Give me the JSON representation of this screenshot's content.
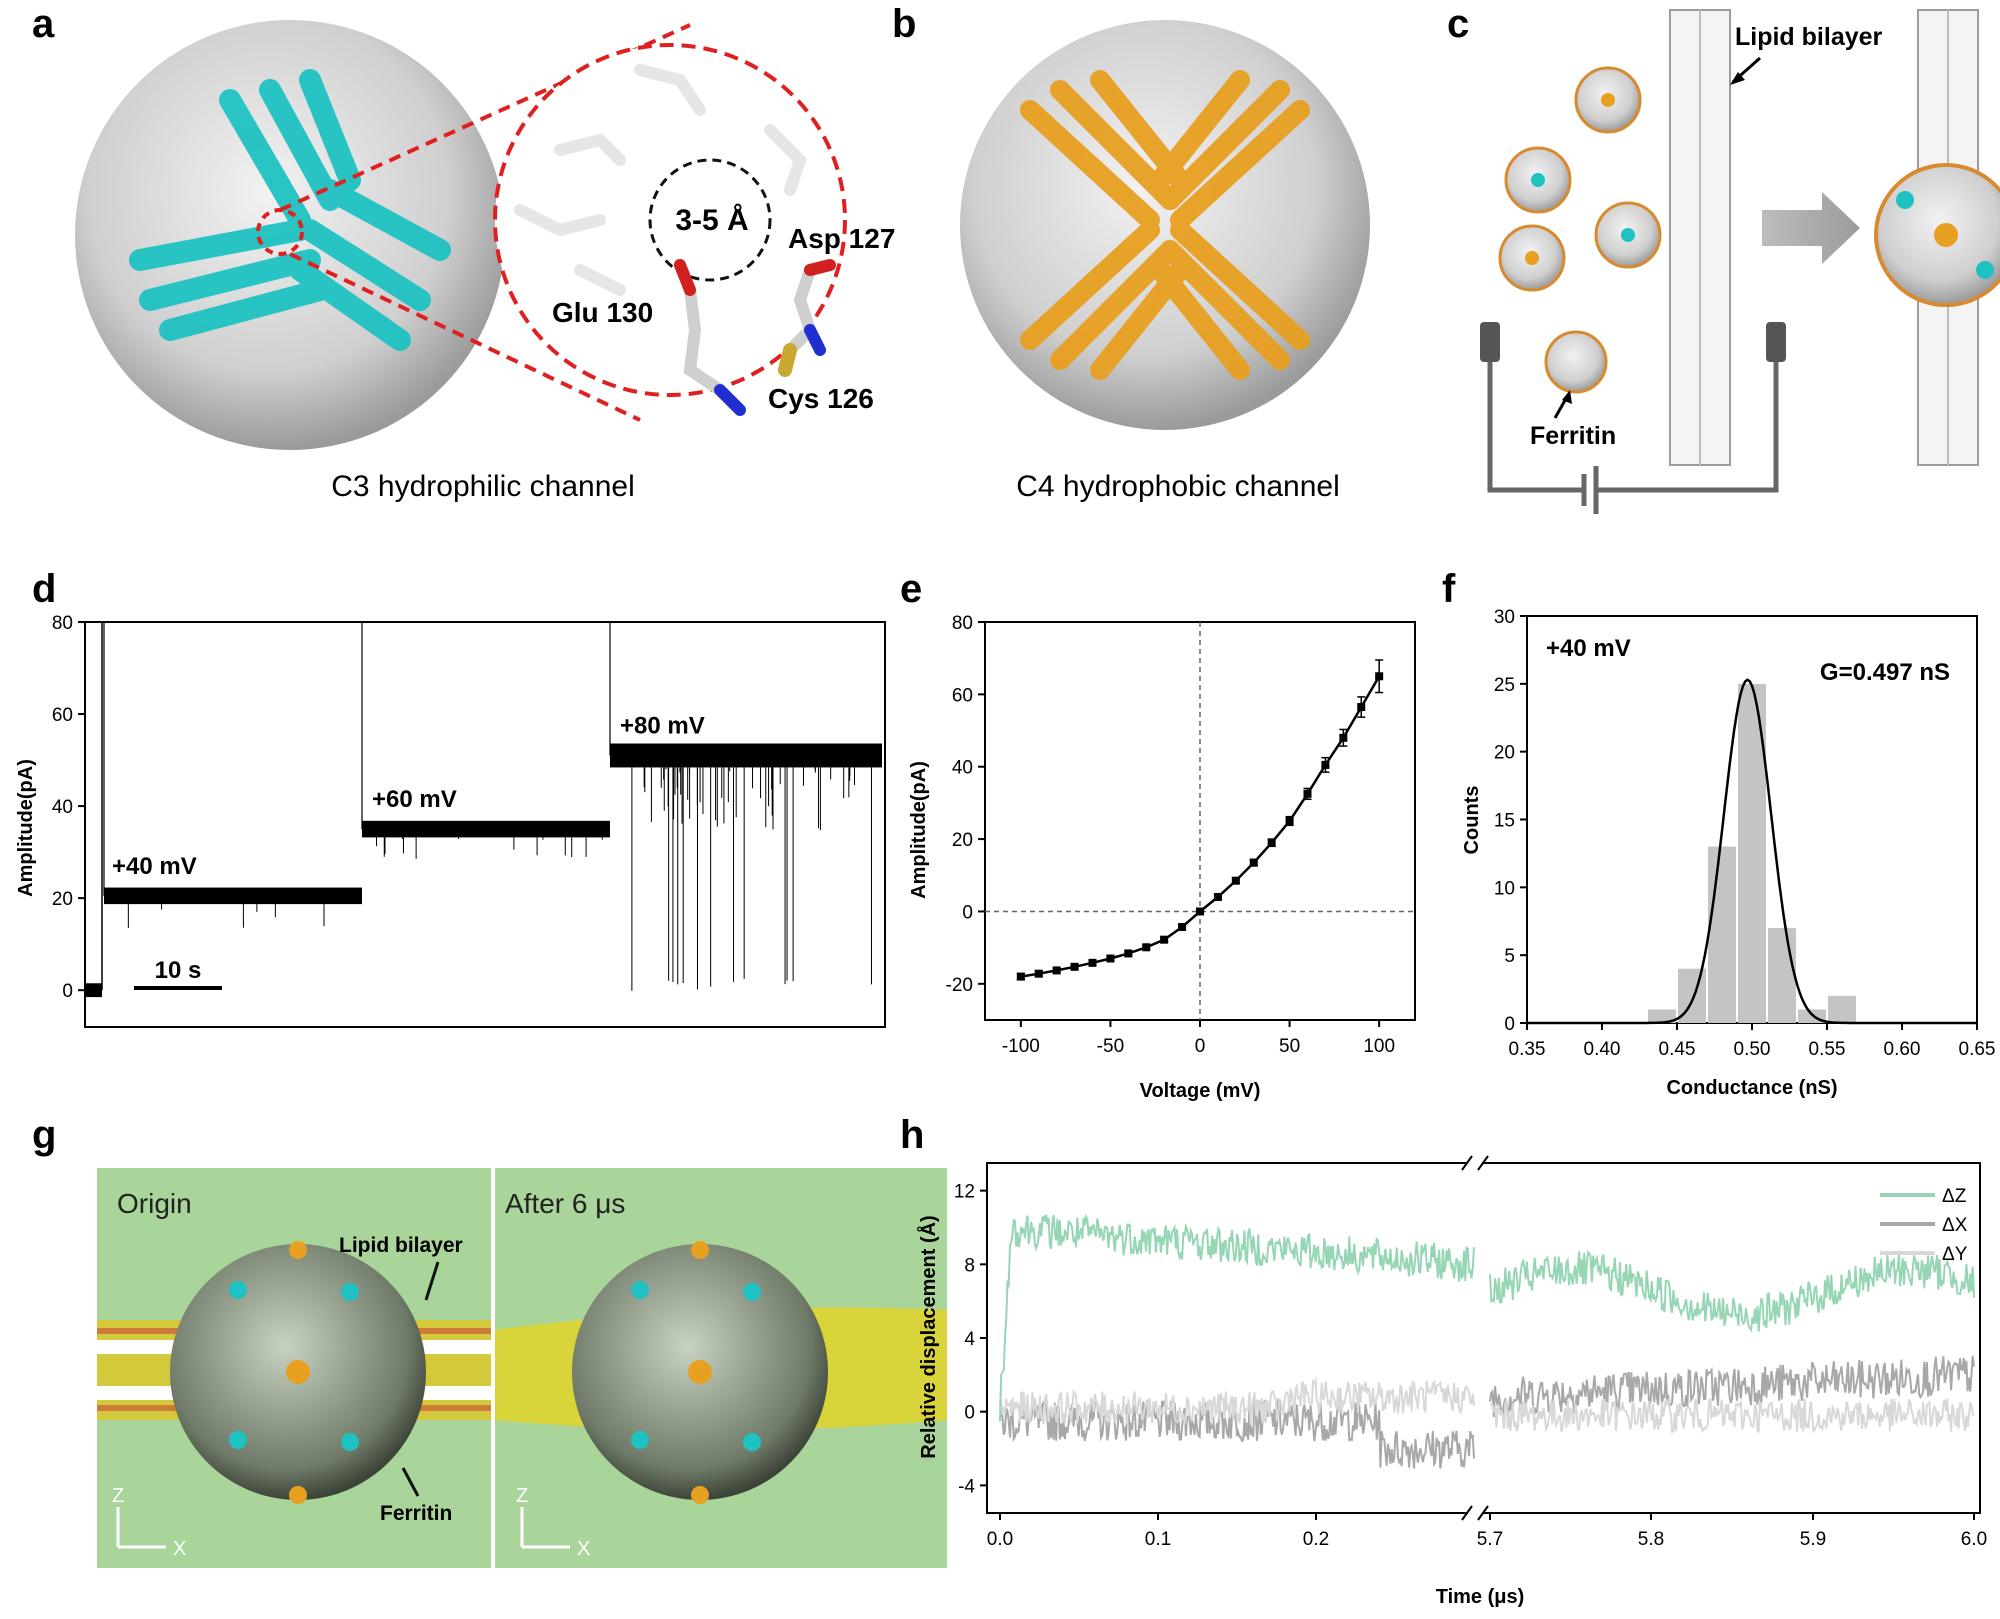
{
  "panel_letters": [
    "a",
    "b",
    "c",
    "d",
    "e",
    "f",
    "g",
    "h"
  ],
  "panel_a": {
    "caption": "C3 hydrophilic channel",
    "pore": "3-5 Å",
    "residues": [
      "Asp 127",
      "Glu 130",
      "Cys 126"
    ]
  },
  "panel_b": {
    "caption": "C4 hydrophobic channel"
  },
  "panel_c": {
    "bilayer_label": "Lipid bilayer",
    "ferritin_label": "Ferritin"
  },
  "panel_g": {
    "left_title": "Origin",
    "right_title": "After 6 μs",
    "bilayer_label": "Lipid bilayer",
    "ferritin_label": "Ferritin",
    "axis_z": "Z",
    "axis_x": "X"
  },
  "colors": {
    "cyan": "#1fc2c2",
    "orange": "#e8a020",
    "red_dash": "#e02020",
    "green_bg": "#a9d49a",
    "mint": "#96d6b4"
  },
  "chart_data": [
    {
      "id": "d",
      "type": "line",
      "ylabel": "Amplitude(pA)",
      "ylim": [
        -8,
        80
      ],
      "yticks": [
        0,
        20,
        40,
        60,
        80
      ],
      "scale_bar": "10 s",
      "segments": [
        {
          "label": "+40 mV",
          "level": 20.5
        },
        {
          "label": "+60 mV",
          "level": 35
        },
        {
          "label": "+80 mV",
          "level": 51
        }
      ]
    },
    {
      "id": "e",
      "type": "scatter",
      "xlabel": "Voltage (mV)",
      "ylabel": "Amplitude(pA)",
      "xlim": [
        -120,
        120
      ],
      "ylim": [
        -30,
        80
      ],
      "xticks": [
        -100,
        -50,
        0,
        50,
        100
      ],
      "yticks": [
        -20,
        0,
        20,
        40,
        60,
        80
      ],
      "x": [
        -100,
        -90,
        -80,
        -70,
        -60,
        -50,
        -40,
        -30,
        -20,
        -10,
        0,
        10,
        20,
        30,
        40,
        50,
        60,
        70,
        80,
        90,
        100
      ],
      "y": [
        -18,
        -17.2,
        -16.3,
        -15.3,
        -14.2,
        -13,
        -11.6,
        -9.9,
        -7.8,
        -4.3,
        0,
        4,
        8.5,
        13.5,
        19,
        25,
        32.5,
        40.5,
        48,
        56.5,
        65
      ],
      "err": [
        0.8,
        0.7,
        0.6,
        0.6,
        0.6,
        0.6,
        0.6,
        0.6,
        0.6,
        0.6,
        0.4,
        0.6,
        0.7,
        0.9,
        1,
        1.2,
        1.5,
        2,
        2.3,
        2.8,
        4.5
      ]
    },
    {
      "id": "f",
      "type": "bar",
      "xlabel": "Conductance (nS)",
      "ylabel": "Counts",
      "xlim": [
        0.35,
        0.65
      ],
      "ylim": [
        0,
        30
      ],
      "xticks": [
        "0.35",
        "0.40",
        "0.45",
        "0.50",
        "0.55",
        "0.60",
        "0.65"
      ],
      "yticks": [
        0,
        5,
        10,
        15,
        20,
        25,
        30
      ],
      "bin_centers": [
        0.44,
        0.46,
        0.48,
        0.5,
        0.52,
        0.54,
        0.56
      ],
      "counts": [
        1,
        4,
        13,
        25,
        7,
        1,
        2
      ],
      "annotation": "+40 mV",
      "fit_label": "G=0.497 nS",
      "fit_mu": 0.497,
      "fit_sigma": 0.0158,
      "fit_amp": 25.3
    },
    {
      "id": "h",
      "type": "line",
      "xlabel": "Time (μs)",
      "ylabel": "Relative displacement (Å)",
      "ylim": [
        -5.5,
        13.5
      ],
      "yticks": [
        -4,
        0,
        4,
        8,
        12
      ],
      "xticks": [
        "0.0",
        "0.1",
        "0.2",
        "5.7",
        "5.8",
        "5.9",
        "6.0"
      ],
      "series": [
        {
          "name": "ΔZ",
          "color": "#96d6b4"
        },
        {
          "name": "ΔX",
          "color": "#a8a8a8"
        },
        {
          "name": "ΔY",
          "color": "#d8d8d8"
        }
      ]
    }
  ]
}
